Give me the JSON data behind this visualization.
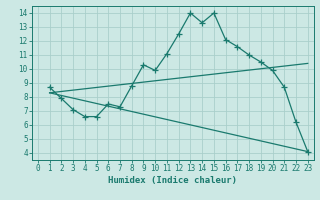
{
  "xlabel": "Humidex (Indice chaleur)",
  "bg_color": "#cce8e4",
  "line_color": "#1a7a6e",
  "grid_color": "#aacfcb",
  "curve1_x": [
    1,
    2,
    3,
    4,
    5,
    6,
    7,
    8,
    9,
    10,
    11,
    12,
    13,
    14,
    15,
    16,
    17,
    18,
    19,
    20,
    21,
    22,
    23
  ],
  "curve1_y": [
    8.7,
    7.9,
    7.1,
    6.6,
    6.6,
    7.5,
    7.3,
    8.8,
    10.3,
    9.9,
    11.1,
    12.5,
    14.0,
    13.3,
    14.0,
    12.1,
    11.6,
    11.0,
    10.5,
    9.9,
    8.7,
    6.2,
    4.1
  ],
  "curve2_x": [
    1,
    23
  ],
  "curve2_y": [
    8.3,
    10.4
  ],
  "curve3_x": [
    1,
    23
  ],
  "curve3_y": [
    8.3,
    4.1
  ],
  "xlim": [
    -0.5,
    23.5
  ],
  "ylim": [
    3.5,
    14.5
  ],
  "xticks": [
    0,
    1,
    2,
    3,
    4,
    5,
    6,
    7,
    8,
    9,
    10,
    11,
    12,
    13,
    14,
    15,
    16,
    17,
    18,
    19,
    20,
    21,
    22,
    23
  ],
  "yticks": [
    4,
    5,
    6,
    7,
    8,
    9,
    10,
    11,
    12,
    13,
    14
  ],
  "tick_fontsize": 5.5,
  "xlabel_fontsize": 6.5
}
